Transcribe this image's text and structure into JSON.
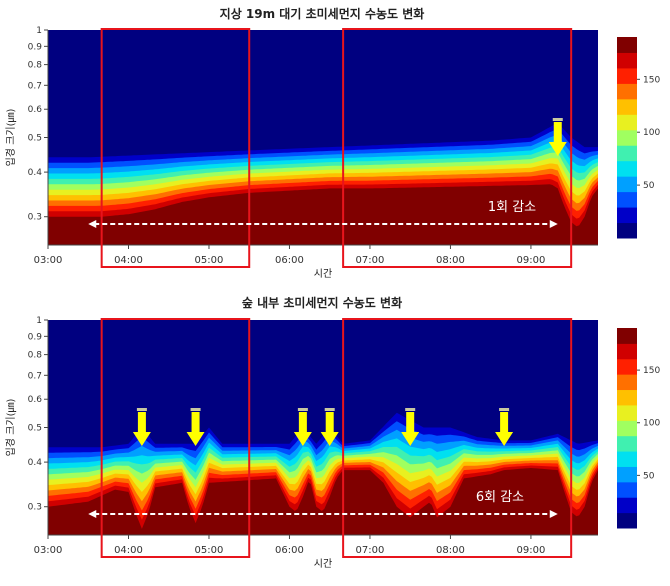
{
  "chart_data": [
    {
      "type": "heatmap",
      "title": "지상 19m 대기 초미세먼지 수농도 변화",
      "xlabel": "시간",
      "ylabel": "입경 크기(㎛)",
      "x_ticks": [
        "03:00",
        "04:00",
        "05:00",
        "06:00",
        "07:00",
        "08:00",
        "09:00"
      ],
      "xlim": [
        "03:00",
        "09:50"
      ],
      "y_scale": "log",
      "ylim": [
        0.25,
        1
      ],
      "y_ticks": [
        0.3,
        0.4,
        0.5,
        0.6,
        0.7,
        0.8,
        0.9,
        1
      ],
      "y_tick_labels": [
        "0.3",
        "0.4",
        "0.5",
        "0.6",
        "0.7",
        "0.8",
        "0.9",
        "1"
      ],
      "colorbar_range": [
        0,
        190
      ],
      "colorbar_ticks": [
        50,
        100,
        150
      ],
      "colors": [
        "#000080",
        "#0000c8",
        "#0050ff",
        "#00a0ff",
        "#00e0f0",
        "#40f0b0",
        "#a0ff60",
        "#e8f020",
        "#ffc000",
        "#ff7000",
        "#ff2000",
        "#d00000",
        "#800000"
      ],
      "upper_boundary": [
        {
          "t": "03:00",
          "d": 0.44
        },
        {
          "t": "03:30",
          "d": 0.44
        },
        {
          "t": "04:00",
          "d": 0.445
        },
        {
          "t": "04:30",
          "d": 0.45
        },
        {
          "t": "05:00",
          "d": 0.455
        },
        {
          "t": "05:30",
          "d": 0.46
        },
        {
          "t": "06:00",
          "d": 0.465
        },
        {
          "t": "06:30",
          "d": 0.47
        },
        {
          "t": "07:00",
          "d": 0.475
        },
        {
          "t": "07:30",
          "d": 0.48
        },
        {
          "t": "08:00",
          "d": 0.485
        },
        {
          "t": "08:30",
          "d": 0.49
        },
        {
          "t": "09:00",
          "d": 0.5
        },
        {
          "t": "09:20",
          "d": 0.55
        },
        {
          "t": "09:30",
          "d": 0.5
        },
        {
          "t": "09:40",
          "d": 0.47
        },
        {
          "t": "09:50",
          "d": 0.47
        }
      ],
      "core_boundary": [
        {
          "t": "03:00",
          "d": 0.3
        },
        {
          "t": "03:20",
          "d": 0.3
        },
        {
          "t": "03:40",
          "d": 0.3
        },
        {
          "t": "04:00",
          "d": 0.305
        },
        {
          "t": "04:20",
          "d": 0.315
        },
        {
          "t": "04:40",
          "d": 0.33
        },
        {
          "t": "05:00",
          "d": 0.34
        },
        {
          "t": "05:30",
          "d": 0.35
        },
        {
          "t": "06:00",
          "d": 0.355
        },
        {
          "t": "06:30",
          "d": 0.36
        },
        {
          "t": "07:00",
          "d": 0.36
        },
        {
          "t": "07:30",
          "d": 0.362
        },
        {
          "t": "08:00",
          "d": 0.364
        },
        {
          "t": "08:30",
          "d": 0.366
        },
        {
          "t": "09:00",
          "d": 0.368
        },
        {
          "t": "09:15",
          "d": 0.37
        },
        {
          "t": "09:20",
          "d": 0.36
        },
        {
          "t": "09:25",
          "d": 0.32
        },
        {
          "t": "09:30",
          "d": 0.29
        },
        {
          "t": "09:35",
          "d": 0.28
        },
        {
          "t": "09:40",
          "d": 0.3
        },
        {
          "t": "09:45",
          "d": 0.34
        },
        {
          "t": "09:50",
          "d": 0.36
        }
      ],
      "highlight_ranges": [
        [
          "03:40",
          "05:30"
        ],
        [
          "06:40",
          "09:30"
        ]
      ],
      "decrease_times": [
        "09:20"
      ],
      "arrow_span": [
        "03:30",
        "09:20"
      ],
      "annotation": "1회 감소"
    },
    {
      "type": "heatmap",
      "title": "숲 내부 초미세먼지 수농도 변화",
      "xlabel": "시간",
      "ylabel": "입경 크기(㎛)",
      "x_ticks": [
        "03:00",
        "04:00",
        "05:00",
        "06:00",
        "07:00",
        "08:00",
        "09:00"
      ],
      "xlim": [
        "03:00",
        "09:50"
      ],
      "y_scale": "log",
      "ylim": [
        0.25,
        1
      ],
      "y_ticks": [
        0.3,
        0.4,
        0.5,
        0.6,
        0.7,
        0.8,
        0.9,
        1
      ],
      "y_tick_labels": [
        "0.3",
        "0.4",
        "0.5",
        "0.6",
        "0.7",
        "0.8",
        "0.9",
        "1"
      ],
      "colorbar_range": [
        0,
        190
      ],
      "colorbar_ticks": [
        50,
        100,
        150
      ],
      "colors": [
        "#000080",
        "#0000c8",
        "#0050ff",
        "#00a0ff",
        "#00e0f0",
        "#40f0b0",
        "#a0ff60",
        "#e8f020",
        "#ffc000",
        "#ff7000",
        "#ff2000",
        "#d00000",
        "#800000"
      ],
      "upper_boundary": [
        {
          "t": "03:00",
          "d": 0.44
        },
        {
          "t": "03:40",
          "d": 0.44
        },
        {
          "t": "04:00",
          "d": 0.45
        },
        {
          "t": "04:10",
          "d": 0.5
        },
        {
          "t": "04:20",
          "d": 0.45
        },
        {
          "t": "04:50",
          "d": 0.45
        },
        {
          "t": "05:00",
          "d": 0.5
        },
        {
          "t": "05:10",
          "d": 0.45
        },
        {
          "t": "06:00",
          "d": 0.45
        },
        {
          "t": "06:10",
          "d": 0.5
        },
        {
          "t": "06:20",
          "d": 0.45
        },
        {
          "t": "06:30",
          "d": 0.5
        },
        {
          "t": "06:40",
          "d": 0.45
        },
        {
          "t": "07:00",
          "d": 0.46
        },
        {
          "t": "07:20",
          "d": 0.55
        },
        {
          "t": "07:40",
          "d": 0.5
        },
        {
          "t": "08:00",
          "d": 0.5
        },
        {
          "t": "08:20",
          "d": 0.47
        },
        {
          "t": "08:40",
          "d": 0.46
        },
        {
          "t": "09:00",
          "d": 0.46
        },
        {
          "t": "09:20",
          "d": 0.48
        },
        {
          "t": "09:35",
          "d": 0.45
        },
        {
          "t": "09:50",
          "d": 0.46
        }
      ],
      "core_boundary": [
        {
          "t": "03:00",
          "d": 0.3
        },
        {
          "t": "03:30",
          "d": 0.31
        },
        {
          "t": "03:50",
          "d": 0.335
        },
        {
          "t": "04:00",
          "d": 0.33
        },
        {
          "t": "04:05",
          "d": 0.29
        },
        {
          "t": "04:10",
          "d": 0.26
        },
        {
          "t": "04:15",
          "d": 0.29
        },
        {
          "t": "04:20",
          "d": 0.34
        },
        {
          "t": "04:40",
          "d": 0.35
        },
        {
          "t": "04:45",
          "d": 0.3
        },
        {
          "t": "04:50",
          "d": 0.27
        },
        {
          "t": "04:55",
          "d": 0.3
        },
        {
          "t": "05:00",
          "d": 0.35
        },
        {
          "t": "05:50",
          "d": 0.36
        },
        {
          "t": "06:00",
          "d": 0.3
        },
        {
          "t": "06:05",
          "d": 0.29
        },
        {
          "t": "06:10",
          "d": 0.32
        },
        {
          "t": "06:15",
          "d": 0.36
        },
        {
          "t": "06:20",
          "d": 0.3
        },
        {
          "t": "06:25",
          "d": 0.29
        },
        {
          "t": "06:30",
          "d": 0.32
        },
        {
          "t": "06:35",
          "d": 0.36
        },
        {
          "t": "06:40",
          "d": 0.38
        },
        {
          "t": "07:00",
          "d": 0.38
        },
        {
          "t": "07:10",
          "d": 0.35
        },
        {
          "t": "07:20",
          "d": 0.3
        },
        {
          "t": "07:30",
          "d": 0.28
        },
        {
          "t": "07:40",
          "d": 0.3
        },
        {
          "t": "07:45",
          "d": 0.31
        },
        {
          "t": "07:50",
          "d": 0.28
        },
        {
          "t": "08:00",
          "d": 0.3
        },
        {
          "t": "08:10",
          "d": 0.36
        },
        {
          "t": "08:30",
          "d": 0.37
        },
        {
          "t": "08:40",
          "d": 0.38
        },
        {
          "t": "09:00",
          "d": 0.385
        },
        {
          "t": "09:20",
          "d": 0.38
        },
        {
          "t": "09:25",
          "d": 0.33
        },
        {
          "t": "09:30",
          "d": 0.29
        },
        {
          "t": "09:35",
          "d": 0.28
        },
        {
          "t": "09:40",
          "d": 0.3
        },
        {
          "t": "09:45",
          "d": 0.35
        },
        {
          "t": "09:50",
          "d": 0.38
        }
      ],
      "highlight_ranges": [
        [
          "03:40",
          "05:30"
        ],
        [
          "06:40",
          "09:30"
        ]
      ],
      "decrease_times": [
        "04:10",
        "04:50",
        "06:10",
        "06:30",
        "07:30",
        "08:40"
      ],
      "arrow_span": [
        "03:30",
        "09:20"
      ],
      "annotation": "6회 감소"
    }
  ]
}
